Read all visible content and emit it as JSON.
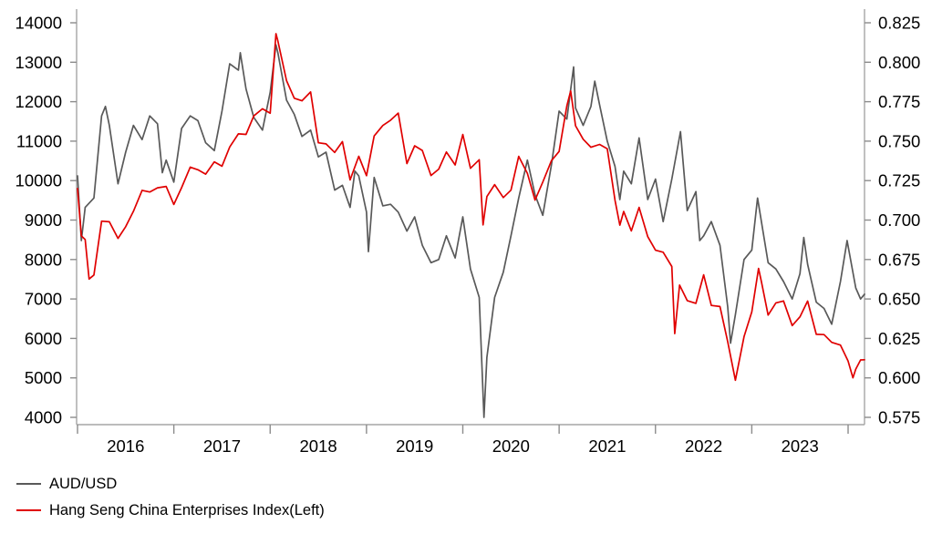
{
  "chart_data": {
    "type": "line",
    "title": "",
    "grid": false,
    "legend_position": "bottom-left",
    "x_axis": {
      "unit": "year",
      "range": [
        2016,
        2024.17
      ],
      "tick_years": [
        2016,
        2017,
        2018,
        2019,
        2020,
        2021,
        2022,
        2023,
        2024
      ],
      "tick_labels_between": [
        "2016",
        "2017",
        "2018",
        "2019",
        "2020",
        "2021",
        "2022",
        "2023"
      ]
    },
    "left_axis": {
      "range": [
        4000,
        14000
      ],
      "tick_step": 1000,
      "tick_labels": [
        "4000",
        "5000",
        "6000",
        "7000",
        "8000",
        "9000",
        "10000",
        "11000",
        "12000",
        "13000",
        "14000"
      ]
    },
    "right_axis": {
      "range": [
        0.575,
        0.825
      ],
      "tick_step": 0.025,
      "tick_labels": [
        "0.575",
        "0.600",
        "0.625",
        "0.650",
        "0.675",
        "0.700",
        "0.725",
        "0.750",
        "0.775",
        "0.800",
        "0.825"
      ]
    },
    "axis_color": "#a6a6a6",
    "tick_color": "#8c8c8c",
    "label_color": "#000000",
    "series": [
      {
        "name": "AUD/USD",
        "axis": "right",
        "color": "#595959",
        "points": [
          [
            2016.0,
            0.728
          ],
          [
            2016.04,
            0.687
          ],
          [
            2016.08,
            0.708
          ],
          [
            2016.17,
            0.714
          ],
          [
            2016.25,
            0.766
          ],
          [
            2016.29,
            0.772
          ],
          [
            2016.33,
            0.76
          ],
          [
            2016.42,
            0.723
          ],
          [
            2016.5,
            0.743
          ],
          [
            2016.58,
            0.76
          ],
          [
            2016.67,
            0.751
          ],
          [
            2016.75,
            0.766
          ],
          [
            2016.83,
            0.761
          ],
          [
            2016.88,
            0.73
          ],
          [
            2016.92,
            0.738
          ],
          [
            2017.0,
            0.724
          ],
          [
            2017.08,
            0.758
          ],
          [
            2017.17,
            0.766
          ],
          [
            2017.25,
            0.763
          ],
          [
            2017.33,
            0.749
          ],
          [
            2017.42,
            0.744
          ],
          [
            2017.5,
            0.769
          ],
          [
            2017.58,
            0.799
          ],
          [
            2017.67,
            0.795
          ],
          [
            2017.69,
            0.806
          ],
          [
            2017.75,
            0.783
          ],
          [
            2017.83,
            0.765
          ],
          [
            2017.92,
            0.757
          ],
          [
            2018.0,
            0.781
          ],
          [
            2018.06,
            0.811
          ],
          [
            2018.08,
            0.806
          ],
          [
            2018.17,
            0.776
          ],
          [
            2018.25,
            0.767
          ],
          [
            2018.33,
            0.753
          ],
          [
            2018.42,
            0.757
          ],
          [
            2018.5,
            0.74
          ],
          [
            2018.58,
            0.743
          ],
          [
            2018.67,
            0.719
          ],
          [
            2018.75,
            0.722
          ],
          [
            2018.83,
            0.708
          ],
          [
            2018.88,
            0.731
          ],
          [
            2018.92,
            0.728
          ],
          [
            2019.0,
            0.705
          ],
          [
            2019.02,
            0.68
          ],
          [
            2019.08,
            0.727
          ],
          [
            2019.17,
            0.709
          ],
          [
            2019.25,
            0.71
          ],
          [
            2019.33,
            0.705
          ],
          [
            2019.42,
            0.693
          ],
          [
            2019.5,
            0.702
          ],
          [
            2019.58,
            0.684
          ],
          [
            2019.67,
            0.673
          ],
          [
            2019.75,
            0.675
          ],
          [
            2019.83,
            0.69
          ],
          [
            2019.92,
            0.676
          ],
          [
            2020.0,
            0.702
          ],
          [
            2020.08,
            0.669
          ],
          [
            2020.17,
            0.651
          ],
          [
            2020.22,
            0.575
          ],
          [
            2020.25,
            0.613
          ],
          [
            2020.33,
            0.651
          ],
          [
            2020.42,
            0.667
          ],
          [
            2020.5,
            0.69
          ],
          [
            2020.58,
            0.714
          ],
          [
            2020.67,
            0.738
          ],
          [
            2020.75,
            0.716
          ],
          [
            2020.83,
            0.703
          ],
          [
            2020.92,
            0.735
          ],
          [
            2021.0,
            0.769
          ],
          [
            2021.08,
            0.764
          ],
          [
            2021.15,
            0.797
          ],
          [
            2021.17,
            0.771
          ],
          [
            2021.25,
            0.76
          ],
          [
            2021.33,
            0.772
          ],
          [
            2021.37,
            0.788
          ],
          [
            2021.42,
            0.773
          ],
          [
            2021.5,
            0.75
          ],
          [
            2021.58,
            0.734
          ],
          [
            2021.63,
            0.713
          ],
          [
            2021.67,
            0.731
          ],
          [
            2021.75,
            0.723
          ],
          [
            2021.83,
            0.752
          ],
          [
            2021.92,
            0.713
          ],
          [
            2022.0,
            0.726
          ],
          [
            2022.08,
            0.699
          ],
          [
            2022.17,
            0.726
          ],
          [
            2022.26,
            0.756
          ],
          [
            2022.33,
            0.706
          ],
          [
            2022.42,
            0.718
          ],
          [
            2022.46,
            0.687
          ],
          [
            2022.5,
            0.69
          ],
          [
            2022.58,
            0.699
          ],
          [
            2022.67,
            0.684
          ],
          [
            2022.75,
            0.645
          ],
          [
            2022.78,
            0.622
          ],
          [
            2022.83,
            0.64
          ],
          [
            2022.92,
            0.675
          ],
          [
            2023.0,
            0.681
          ],
          [
            2023.06,
            0.714
          ],
          [
            2023.17,
            0.673
          ],
          [
            2023.25,
            0.669
          ],
          [
            2023.33,
            0.661
          ],
          [
            2023.42,
            0.65
          ],
          [
            2023.5,
            0.666
          ],
          [
            2023.54,
            0.689
          ],
          [
            2023.58,
            0.672
          ],
          [
            2023.67,
            0.648
          ],
          [
            2023.75,
            0.644
          ],
          [
            2023.83,
            0.634
          ],
          [
            2023.92,
            0.661
          ],
          [
            2023.99,
            0.687
          ],
          [
            2024.08,
            0.657
          ],
          [
            2024.13,
            0.65
          ],
          [
            2024.17,
            0.653
          ]
        ]
      },
      {
        "name": "Hang Seng China Enterprises Index(Left)",
        "axis": "left",
        "color": "#e00000",
        "points": [
          [
            2016.0,
            9800
          ],
          [
            2016.04,
            8600
          ],
          [
            2016.08,
            8505
          ],
          [
            2016.12,
            7505
          ],
          [
            2016.17,
            7607
          ],
          [
            2016.25,
            8972
          ],
          [
            2016.33,
            8957
          ],
          [
            2016.42,
            8535
          ],
          [
            2016.5,
            8831
          ],
          [
            2016.58,
            9222
          ],
          [
            2016.67,
            9752
          ],
          [
            2016.75,
            9712
          ],
          [
            2016.83,
            9818
          ],
          [
            2016.92,
            9853
          ],
          [
            2017.0,
            9395
          ],
          [
            2017.08,
            9821
          ],
          [
            2017.17,
            10341
          ],
          [
            2017.25,
            10274
          ],
          [
            2017.33,
            10165
          ],
          [
            2017.42,
            10476
          ],
          [
            2017.5,
            10365
          ],
          [
            2017.58,
            10852
          ],
          [
            2017.67,
            11184
          ],
          [
            2017.75,
            11171
          ],
          [
            2017.83,
            11640
          ],
          [
            2017.92,
            11820
          ],
          [
            2018.0,
            11709
          ],
          [
            2018.06,
            13723
          ],
          [
            2018.08,
            13541
          ],
          [
            2018.17,
            12534
          ],
          [
            2018.25,
            12087
          ],
          [
            2018.33,
            12024
          ],
          [
            2018.42,
            12247
          ],
          [
            2018.5,
            10959
          ],
          [
            2018.58,
            10930
          ],
          [
            2018.67,
            10713
          ],
          [
            2018.75,
            10989
          ],
          [
            2018.83,
            10019
          ],
          [
            2018.92,
            10616
          ],
          [
            2019.0,
            10125
          ],
          [
            2019.08,
            11132
          ],
          [
            2019.17,
            11398
          ],
          [
            2019.25,
            11532
          ],
          [
            2019.33,
            11711
          ],
          [
            2019.42,
            10433
          ],
          [
            2019.5,
            10882
          ],
          [
            2019.58,
            10764
          ],
          [
            2019.67,
            10129
          ],
          [
            2019.75,
            10291
          ],
          [
            2019.83,
            10725
          ],
          [
            2019.92,
            10398
          ],
          [
            2020.0,
            11168
          ],
          [
            2020.08,
            10312
          ],
          [
            2020.17,
            10529
          ],
          [
            2020.21,
            8878
          ],
          [
            2020.25,
            9595
          ],
          [
            2020.33,
            9899
          ],
          [
            2020.42,
            9570
          ],
          [
            2020.5,
            9758
          ],
          [
            2020.58,
            10615
          ],
          [
            2020.67,
            10184
          ],
          [
            2020.75,
            9505
          ],
          [
            2020.83,
            9963
          ],
          [
            2020.92,
            10506
          ],
          [
            2021.0,
            10738
          ],
          [
            2021.08,
            11895
          ],
          [
            2021.12,
            12271
          ],
          [
            2021.17,
            11391
          ],
          [
            2021.25,
            11048
          ],
          [
            2021.33,
            10846
          ],
          [
            2021.42,
            10918
          ],
          [
            2021.5,
            10808
          ],
          [
            2021.58,
            9500
          ],
          [
            2021.63,
            8870
          ],
          [
            2021.67,
            9217
          ],
          [
            2021.75,
            8726
          ],
          [
            2021.83,
            9322
          ],
          [
            2021.92,
            8579
          ],
          [
            2022.0,
            8236
          ],
          [
            2022.08,
            8184
          ],
          [
            2022.17,
            7823
          ],
          [
            2022.2,
            6123
          ],
          [
            2022.25,
            7351
          ],
          [
            2022.33,
            6959
          ],
          [
            2022.42,
            6888
          ],
          [
            2022.5,
            7612
          ],
          [
            2022.58,
            6837
          ],
          [
            2022.67,
            6809
          ],
          [
            2022.75,
            5914
          ],
          [
            2022.83,
            4939
          ],
          [
            2022.92,
            6047
          ],
          [
            2023.0,
            6675
          ],
          [
            2023.07,
            7773
          ],
          [
            2023.1,
            7443
          ],
          [
            2023.17,
            6591
          ],
          [
            2023.25,
            6901
          ],
          [
            2023.33,
            6949
          ],
          [
            2023.42,
            6325
          ],
          [
            2023.5,
            6548
          ],
          [
            2023.58,
            6946
          ],
          [
            2023.67,
            6103
          ],
          [
            2023.75,
            6096
          ],
          [
            2023.83,
            5900
          ],
          [
            2023.92,
            5832
          ],
          [
            2024.0,
            5424
          ],
          [
            2024.05,
            5002
          ],
          [
            2024.08,
            5221
          ],
          [
            2024.13,
            5454
          ],
          [
            2024.17,
            5460
          ]
        ]
      }
    ]
  },
  "legend": {
    "items": [
      {
        "label": "AUD/USD"
      },
      {
        "label": "Hang Seng China Enterprises Index(Left)"
      }
    ]
  }
}
